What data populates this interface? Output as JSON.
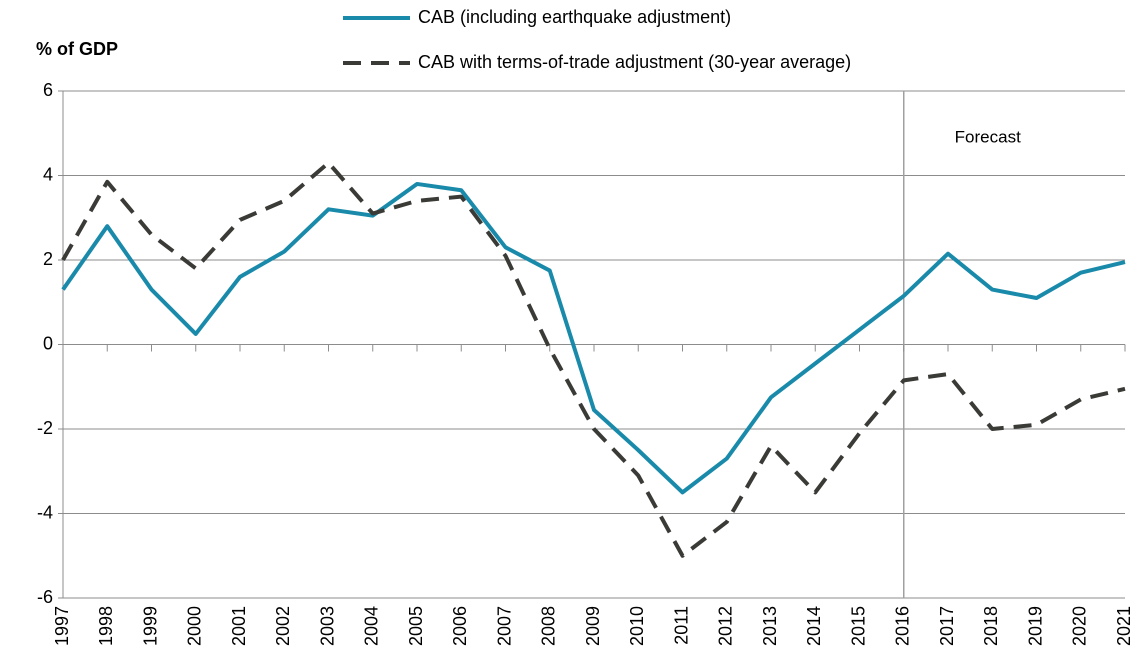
{
  "chart_data": {
    "type": "line",
    "y_label": "% of GDP",
    "x": [
      1997,
      1998,
      1999,
      2000,
      2001,
      2002,
      2003,
      2004,
      2005,
      2006,
      2007,
      2008,
      2009,
      2010,
      2011,
      2012,
      2013,
      2014,
      2015,
      2016,
      2017,
      2018,
      2019,
      2020,
      2021
    ],
    "xlim": [
      1997,
      2021
    ],
    "ylim": [
      -6,
      6
    ],
    "yticks": [
      -6,
      -4,
      -2,
      0,
      2,
      4,
      6
    ],
    "grid": true,
    "annotation": {
      "text": "Forecast",
      "x": 2016
    },
    "series": [
      {
        "name": "CAB (including earthquake adjustment)",
        "color": "#1a8aab",
        "dash": false,
        "values": [
          1.3,
          2.8,
          1.3,
          0.25,
          1.6,
          2.2,
          3.2,
          3.05,
          3.8,
          3.65,
          2.3,
          1.75,
          -1.55,
          -2.5,
          -3.5,
          -2.7,
          -1.25,
          -0.45,
          0.35,
          1.15,
          2.15,
          1.3,
          1.1,
          1.7,
          1.95
        ]
      },
      {
        "name": "CAB with terms-of-trade adjustment (30-year average)",
        "color": "#3a3a37",
        "dash": true,
        "values": [
          2.0,
          3.85,
          2.6,
          1.8,
          2.95,
          3.4,
          4.3,
          3.1,
          3.4,
          3.5,
          2.1,
          -0.1,
          -2.0,
          -3.1,
          -5.0,
          -4.2,
          -2.4,
          -3.5,
          -2.1,
          -0.85,
          -0.7,
          -2.0,
          -1.9,
          -1.3,
          -1.05
        ]
      }
    ]
  }
}
